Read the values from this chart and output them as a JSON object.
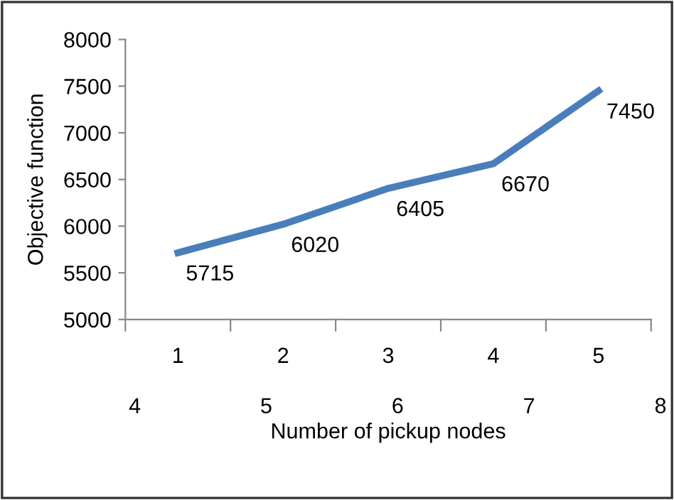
{
  "chart_data": {
    "type": "line",
    "xlabel": "Number of pickup nodes",
    "ylabel": "Objective function",
    "categories": [
      "1",
      "2",
      "3",
      "4",
      "5"
    ],
    "series": [
      {
        "color": "#4a7ebb",
        "values": [
          5715,
          6020,
          6405,
          6670,
          7450
        ]
      }
    ],
    "data_labels": true,
    "ylim": [
      5000,
      8000
    ],
    "yticks": [
      5000,
      5500,
      6000,
      6500,
      7000,
      7500,
      8000
    ],
    "grid": false,
    "legend": false,
    "marker": "none",
    "line_style": "solid",
    "annotations": [
      "4",
      "5",
      "6",
      "7",
      "8"
    ]
  }
}
